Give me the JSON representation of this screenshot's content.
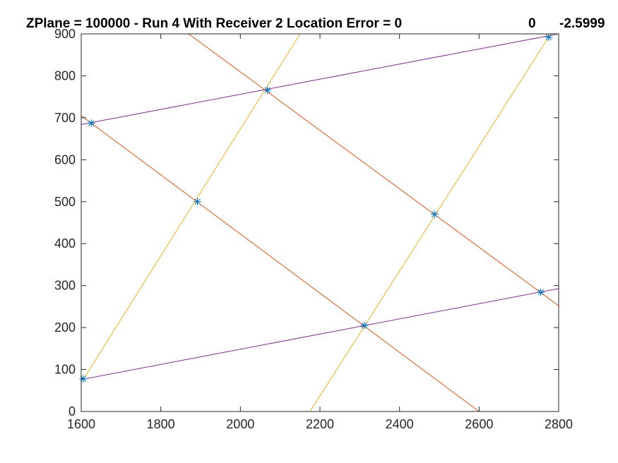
{
  "chart_data": {
    "type": "line",
    "title": {
      "main": "ZPlane = 100000 - Run 4 With Receiver 2 Location Error = 0",
      "value_1": "0",
      "value_2": "-2.5999"
    },
    "xlabel": "",
    "ylabel": "",
    "xlim": [
      1600,
      2800
    ],
    "ylim": [
      0,
      900
    ],
    "xticks": [
      1600,
      1800,
      2000,
      2200,
      2400,
      2600,
      2800
    ],
    "yticks": [
      0,
      100,
      200,
      300,
      400,
      500,
      600,
      700,
      800,
      900
    ],
    "grid": false,
    "box": true,
    "series": [
      {
        "color": "#7E2F8E",
        "lines": [
          [
            [
              1600,
              684
            ],
            [
              2800,
              900
            ]
          ],
          [
            [
              1600,
              76
            ],
            [
              2800,
              293
            ]
          ]
        ]
      },
      {
        "color": "#D95319",
        "lines": [
          [
            [
              1600,
              705
            ],
            [
              2600,
              0
            ]
          ],
          [
            [
              1870,
              900
            ],
            [
              2800,
              252
            ]
          ]
        ]
      },
      {
        "color": "#EDB120",
        "lines": [
          [
            [
              1605,
              76
            ],
            [
              2150,
              900
            ]
          ],
          [
            [
              2175,
              0
            ],
            [
              2780,
              900
            ]
          ]
        ]
      },
      {
        "marker": "*",
        "color": "#0072BD",
        "points": [
          [
            1625,
            687
          ],
          [
            2068,
            766
          ],
          [
            2775,
            892
          ],
          [
            1892,
            500
          ],
          [
            2488,
            470
          ],
          [
            1605,
            78
          ],
          [
            2312,
            205
          ],
          [
            2755,
            284
          ]
        ]
      }
    ]
  }
}
